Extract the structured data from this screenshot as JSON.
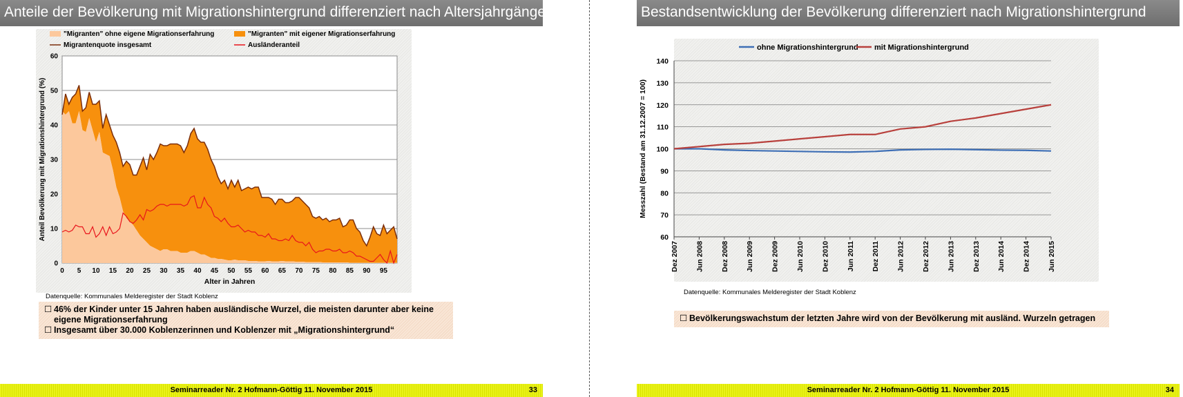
{
  "left": {
    "title": "Anteile der Bevölkerung mit Migrationshintergrund differenziert nach Altersjahrgängen",
    "source": "Datenquelle:  Kommunales Melderegister der Stadt Koblenz",
    "notes": [
      "46% der Kinder unter 15 Jahren haben ausländische Wurzel, die meisten darunter aber keine eigene Migrationserfahrung",
      "Insgesamt über 30.000 Koblenzerinnen und Koblenzer mit „Migrationshintergrund“"
    ],
    "bullet": "☐",
    "footer": "Seminarreader Nr. 2 Hofmann-Göttig 11. November 2015",
    "page": "33"
  },
  "right": {
    "title": "Bestandsentwicklung der Bevölkerung differenziert nach Migrationshintergrund",
    "source": "Datenquelle:  Kommunales Melderegister der Stadt Koblenz",
    "note": "Bevölkerungswachstum der letzten Jahre wird von der Bevölkerung mit ausländ. Wurzeln getragen",
    "bullet": "☐",
    "footer": "Seminarreader Nr. 2 Hofmann-Göttig 11. November 2015",
    "page": "34"
  },
  "chart_data": [
    {
      "type": "area",
      "title": "",
      "xlabel": "Alter in Jahren",
      "ylabel": "Anteil Bevölkerung mit Migrationshintergrund (%)",
      "xlim": [
        0,
        99
      ],
      "ylim": [
        0,
        60
      ],
      "xticks": [
        0,
        5,
        10,
        15,
        20,
        25,
        30,
        35,
        40,
        45,
        50,
        55,
        60,
        65,
        70,
        75,
        80,
        85,
        90,
        95
      ],
      "yticks": [
        0,
        10,
        20,
        30,
        40,
        50,
        60
      ],
      "grid": true,
      "legend": "top",
      "colors": {
        "area_ohne": "#fcc89c",
        "area_mit": "#f7900d",
        "line_quote": "#7a2d0a",
        "line_auslaender": "#e8131b"
      },
      "legend_labels": {
        "ohne": "\"Migranten\" ohne eigene Migrationserfahrung",
        "mit": "\"Migranten\" mit eigener Migrationserfahrung",
        "quote": "Migrantenquote insgesamt",
        "auslaender": "Ausländeranteil"
      },
      "x": [
        0,
        1,
        2,
        3,
        4,
        5,
        6,
        7,
        8,
        9,
        10,
        11,
        12,
        13,
        14,
        15,
        16,
        17,
        18,
        19,
        20,
        21,
        22,
        23,
        24,
        25,
        26,
        27,
        28,
        29,
        30,
        31,
        32,
        33,
        34,
        35,
        36,
        37,
        38,
        39,
        40,
        41,
        42,
        43,
        44,
        45,
        46,
        47,
        48,
        49,
        50,
        51,
        52,
        53,
        54,
        55,
        56,
        57,
        58,
        59,
        60,
        61,
        62,
        63,
        64,
        65,
        66,
        67,
        68,
        69,
        70,
        71,
        72,
        73,
        74,
        75,
        76,
        77,
        78,
        79,
        80,
        81,
        82,
        83,
        84,
        85,
        86,
        87,
        88,
        89,
        90,
        91,
        92,
        93,
        94,
        95,
        96,
        97,
        98,
        99
      ],
      "ohne_values": [
        44,
        43,
        44,
        40.5,
        40.5,
        44,
        38.5,
        38,
        42,
        38.5,
        35,
        38,
        32,
        31.5,
        31,
        27,
        22,
        19,
        15,
        13,
        12,
        11,
        9.5,
        8,
        7,
        6,
        5,
        4.5,
        4,
        3.5,
        4,
        4,
        3.5,
        3.5,
        3.5,
        3,
        3,
        3,
        3.5,
        3.5,
        3,
        2.5,
        2.5,
        2,
        1.5,
        1.5,
        1.2,
        1.2,
        1,
        0.8,
        0.8,
        1,
        0.8,
        0.8,
        0.8,
        0.6,
        0.6,
        0.6,
        0.5,
        0.5,
        0.5,
        0.6,
        0.5,
        0.5,
        0.5,
        0.6,
        0.5,
        0.5,
        0.5,
        0.4,
        0.4,
        0.4,
        0.3,
        0.3,
        0.3,
        0.3,
        0.3,
        0.2,
        0.2,
        0.2,
        0.2,
        0.2,
        0.2,
        0.2,
        0.2,
        0.1,
        0.1,
        0.1,
        0.1,
        0.1,
        0.1,
        0.1,
        0.1,
        0.1,
        0.1,
        0.1,
        0.1,
        0.1,
        0.1,
        0.1
      ],
      "quote_values": [
        43,
        49,
        46,
        48,
        49,
        51.5,
        44,
        45,
        49.5,
        46,
        46,
        47,
        39,
        43,
        40,
        37,
        35,
        32,
        28,
        29.5,
        28.5,
        25.5,
        25.5,
        28,
        30.5,
        27,
        31.5,
        30,
        32,
        34.5,
        34,
        34,
        34.5,
        34.5,
        34.5,
        34,
        32,
        34,
        37.5,
        39,
        36,
        35,
        35,
        33,
        30,
        28,
        25,
        23,
        24,
        21.5,
        24,
        22,
        24,
        21,
        21.5,
        22,
        21.5,
        22,
        22,
        19,
        19,
        19,
        18.5,
        17,
        18.5,
        18.5,
        17.5,
        17.5,
        18,
        19,
        19,
        18,
        17,
        16,
        13.5,
        13,
        13.5,
        12.5,
        13,
        12,
        12.5,
        12.5,
        13,
        10.5,
        11,
        12.5,
        12.5,
        10,
        9,
        6.5,
        5,
        7.5,
        10.5,
        8.5,
        8,
        11,
        8.5,
        9.5,
        10.5,
        7,
        12
      ]
    },
    {
      "type": "line",
      "title": "",
      "xlabel": "",
      "ylabel": "Messzahl (Bestand am 31.12.2007 = 100)",
      "ylim": [
        60,
        140
      ],
      "yticks": [
        60,
        70,
        80,
        90,
        100,
        110,
        120,
        130,
        140
      ],
      "grid": true,
      "legend": "top",
      "categories": [
        "Dez 2007",
        "Jun 2008",
        "Dez 2008",
        "Jun 2009",
        "Dez 2009",
        "Jun 2010",
        "Dez 2010",
        "Jun 2011",
        "Dez 2011",
        "Jun 2012",
        "Dez 2012",
        "Jun 2013",
        "Dez 2013",
        "Jun 2014",
        "Dez 2014",
        "Jun 2015"
      ],
      "series": [
        {
          "name": "ohne Migrationshintergrund",
          "color": "#3d6eb5",
          "values": [
            100,
            100,
            99.5,
            99.2,
            99,
            98.8,
            98.6,
            98.5,
            98.8,
            99.5,
            99.7,
            99.8,
            99.6,
            99.4,
            99.3,
            99
          ]
        },
        {
          "name": "mit Migrationshintergrund",
          "color": "#b8403c",
          "values": [
            100,
            101,
            102,
            102.5,
            103.5,
            104.5,
            105.5,
            106.5,
            106.5,
            109,
            110,
            112.5,
            114,
            116,
            118,
            120
          ]
        }
      ]
    }
  ]
}
